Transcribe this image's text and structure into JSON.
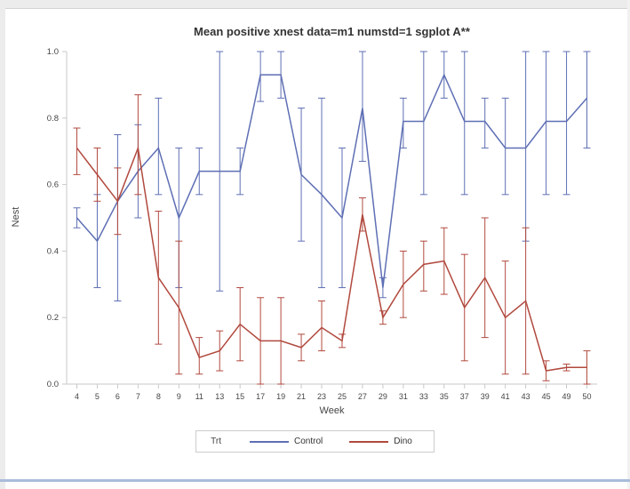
{
  "chart_data": {
    "type": "line",
    "title": "Mean positive xnest data=m1 numstd=1 sgplot A**",
    "xlabel": "Week",
    "ylabel": "Nest",
    "ylim": [
      0.0,
      1.0
    ],
    "yticks": [
      "0.0",
      "0.2",
      "0.4",
      "0.6",
      "0.8",
      "1.0"
    ],
    "grid": false,
    "error_bars": true,
    "legend": {
      "title": "Trt",
      "position": "bottom"
    },
    "categories": [
      "4",
      "5",
      "6",
      "7",
      "8",
      "9",
      "11",
      "13",
      "15",
      "17",
      "19",
      "21",
      "23",
      "25",
      "27",
      "29",
      "31",
      "33",
      "35",
      "37",
      "39",
      "41",
      "43",
      "45",
      "49",
      "50"
    ],
    "series": [
      {
        "name": "Control",
        "color": "#5e6fb4",
        "values": [
          0.5,
          0.43,
          0.55,
          0.64,
          0.71,
          0.5,
          0.64,
          0.64,
          0.64,
          0.93,
          0.93,
          0.63,
          0.57,
          0.5,
          0.83,
          0.29,
          0.79,
          0.79,
          0.93,
          0.79,
          0.79,
          0.71,
          0.71,
          0.79,
          0.79,
          0.86
        ],
        "err_lo": [
          0.47,
          0.29,
          0.25,
          0.5,
          0.57,
          0.29,
          0.57,
          0.28,
          0.57,
          0.85,
          0.86,
          0.43,
          0.29,
          0.29,
          0.67,
          0.26,
          0.71,
          0.57,
          0.86,
          0.57,
          0.71,
          0.57,
          0.43,
          0.57,
          0.57,
          0.71
        ],
        "err_hi": [
          0.53,
          0.57,
          0.75,
          0.78,
          0.86,
          0.71,
          0.71,
          1.0,
          0.71,
          1.0,
          1.0,
          0.83,
          0.86,
          0.71,
          1.0,
          0.32,
          0.86,
          1.0,
          1.0,
          1.0,
          0.86,
          0.86,
          1.0,
          1.0,
          1.0,
          1.0
        ]
      },
      {
        "name": "Dino",
        "color": "#b1493e",
        "values": [
          0.71,
          0.63,
          0.55,
          0.71,
          0.32,
          0.23,
          0.08,
          0.1,
          0.18,
          0.13,
          0.13,
          0.11,
          0.17,
          0.13,
          0.51,
          0.2,
          0.3,
          0.36,
          0.37,
          0.23,
          0.32,
          0.2,
          0.25,
          0.04,
          0.05,
          0.05
        ],
        "err_lo": [
          0.63,
          0.55,
          0.45,
          0.57,
          0.12,
          0.03,
          0.03,
          0.04,
          0.07,
          0.0,
          0.0,
          0.07,
          0.1,
          0.11,
          0.46,
          0.18,
          0.2,
          0.28,
          0.27,
          0.07,
          0.14,
          0.03,
          0.03,
          0.01,
          0.04,
          0.0
        ],
        "err_hi": [
          0.77,
          0.71,
          0.65,
          0.87,
          0.52,
          0.43,
          0.14,
          0.16,
          0.29,
          0.26,
          0.26,
          0.15,
          0.25,
          0.15,
          0.56,
          0.22,
          0.4,
          0.43,
          0.47,
          0.39,
          0.5,
          0.37,
          0.47,
          0.07,
          0.06,
          0.1
        ]
      }
    ]
  }
}
